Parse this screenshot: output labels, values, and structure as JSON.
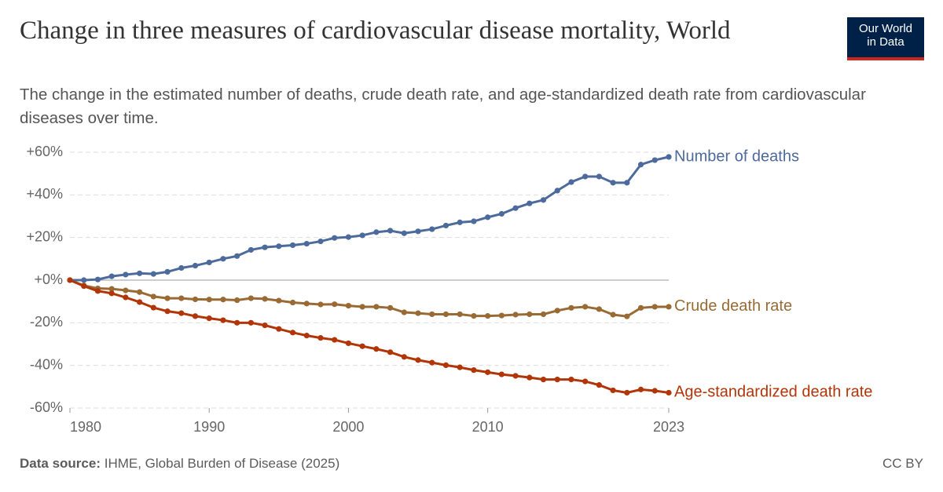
{
  "chart_data": {
    "type": "line",
    "title": "Change in three measures of cardiovascular disease mortality, World",
    "subtitle": "The change in the estimated number of deaths, crude death rate, and age-standardized death rate from cardiovascular diseases over time.",
    "logo": [
      "Our World",
      "in Data"
    ],
    "source_label": "Data source:",
    "source": "IHME, Global Burden of Disease (2025)",
    "license": "CC BY",
    "x": [
      1980,
      1981,
      1982,
      1983,
      1984,
      1985,
      1986,
      1987,
      1988,
      1989,
      1990,
      1991,
      1992,
      1993,
      1994,
      1995,
      1996,
      1997,
      1998,
      1999,
      2000,
      2001,
      2002,
      2003,
      2004,
      2005,
      2006,
      2007,
      2008,
      2009,
      2010,
      2011,
      2012,
      2013,
      2014,
      2015,
      2016,
      2017,
      2018,
      2019,
      2020,
      2021,
      2022,
      2023
    ],
    "series": [
      {
        "name": "Number of deaths",
        "color": "#4c6a9c",
        "values": [
          0,
          0,
          0.3,
          1.8,
          2.6,
          3.2,
          2.9,
          3.9,
          5.7,
          6.8,
          8.3,
          10,
          11.3,
          14.2,
          15.4,
          15.9,
          16.4,
          17.1,
          18.2,
          19.8,
          20.2,
          21,
          22.5,
          23.2,
          22,
          22.9,
          23.9,
          25.6,
          27.1,
          27.6,
          29.5,
          31.1,
          33.8,
          36,
          37.6,
          42,
          46,
          48.6,
          48.6,
          45.7,
          45.7,
          54.2,
          56.3,
          57.8
        ]
      },
      {
        "name": "Crude death rate",
        "color": "#9a6a35",
        "values": [
          0,
          -2.5,
          -3.9,
          -4.1,
          -4.8,
          -5.6,
          -7.7,
          -8.5,
          -8.5,
          -9,
          -9.1,
          -9.1,
          -9.4,
          -8.5,
          -8.8,
          -9.6,
          -10.5,
          -11,
          -11.4,
          -11.3,
          -12,
          -12.5,
          -12.5,
          -13,
          -15.1,
          -15.5,
          -16,
          -16,
          -16,
          -16.8,
          -16.8,
          -16.6,
          -16.2,
          -16,
          -16,
          -14.3,
          -13,
          -12.5,
          -13.6,
          -16.2,
          -17,
          -13,
          -12.5,
          -12.5
        ]
      },
      {
        "name": "Age-standardized death rate",
        "color": "#b13507",
        "values": [
          0,
          -2.8,
          -5.1,
          -6.2,
          -8.1,
          -10.3,
          -12.9,
          -14.6,
          -15.5,
          -16.9,
          -17.9,
          -18.8,
          -20,
          -20,
          -21.2,
          -22.9,
          -24.6,
          -26,
          -27.1,
          -28,
          -29.6,
          -31,
          -32.3,
          -33.8,
          -36,
          -37.5,
          -38.7,
          -39.9,
          -40.9,
          -42.2,
          -43.2,
          -44.2,
          -44.9,
          -45.7,
          -46.6,
          -46.6,
          -46.6,
          -47.5,
          -49.2,
          -51.7,
          -52.8,
          -51.3,
          -51.9,
          -52.8
        ]
      }
    ],
    "xlim": [
      1980,
      2023
    ],
    "xticks": [
      1980,
      1990,
      2000,
      2010,
      2023
    ],
    "ylim": [
      -60,
      60
    ],
    "yticks": [
      {
        "value": -60,
        "label": "-60%"
      },
      {
        "value": -40,
        "label": "-40%"
      },
      {
        "value": -20,
        "label": "-20%"
      },
      {
        "value": 0,
        "label": "+0%"
      },
      {
        "value": 20,
        "label": "+20%"
      },
      {
        "value": 40,
        "label": "+40%"
      },
      {
        "value": 60,
        "label": "+60%"
      }
    ],
    "grid": true
  }
}
